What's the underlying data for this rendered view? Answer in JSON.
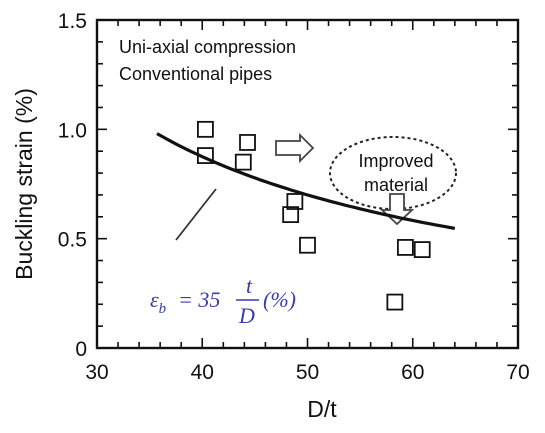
{
  "chart_data": {
    "type": "scatter",
    "title": "",
    "xlabel": "D/t",
    "ylabel": "Buckling strain (%)",
    "xlim": [
      30,
      70
    ],
    "ylim": [
      0,
      1.5
    ],
    "x_ticks": [
      "30",
      "40",
      "50",
      "60",
      "70"
    ],
    "y_ticks": [
      "0",
      "0.5",
      "1.0",
      "1.5"
    ],
    "grid": false,
    "annotations": {
      "line1": "Uni-axial compression",
      "line2": "Conventional pipes",
      "improved_line1": "Improved",
      "improved_line2": "material",
      "formula_lhs": "ε",
      "formula_sub": "b",
      "formula_eq": "= 35",
      "formula_num": "t",
      "formula_den": "D",
      "formula_unit": "(%)"
    },
    "series": [
      {
        "type": "scatter",
        "marker": "open-square",
        "points": [
          {
            "x": 40.3,
            "y": 1.0
          },
          {
            "x": 40.3,
            "y": 0.88
          },
          {
            "x": 43.9,
            "y": 0.85
          },
          {
            "x": 44.3,
            "y": 0.94
          },
          {
            "x": 48.4,
            "y": 0.61
          },
          {
            "x": 48.8,
            "y": 0.67
          },
          {
            "x": 50.0,
            "y": 0.47
          },
          {
            "x": 58.3,
            "y": 0.21
          },
          {
            "x": 59.3,
            "y": 0.46
          },
          {
            "x": 60.9,
            "y": 0.45
          }
        ]
      },
      {
        "type": "line",
        "formula": "35 / x",
        "x_range": [
          35.7,
          64
        ]
      }
    ]
  }
}
